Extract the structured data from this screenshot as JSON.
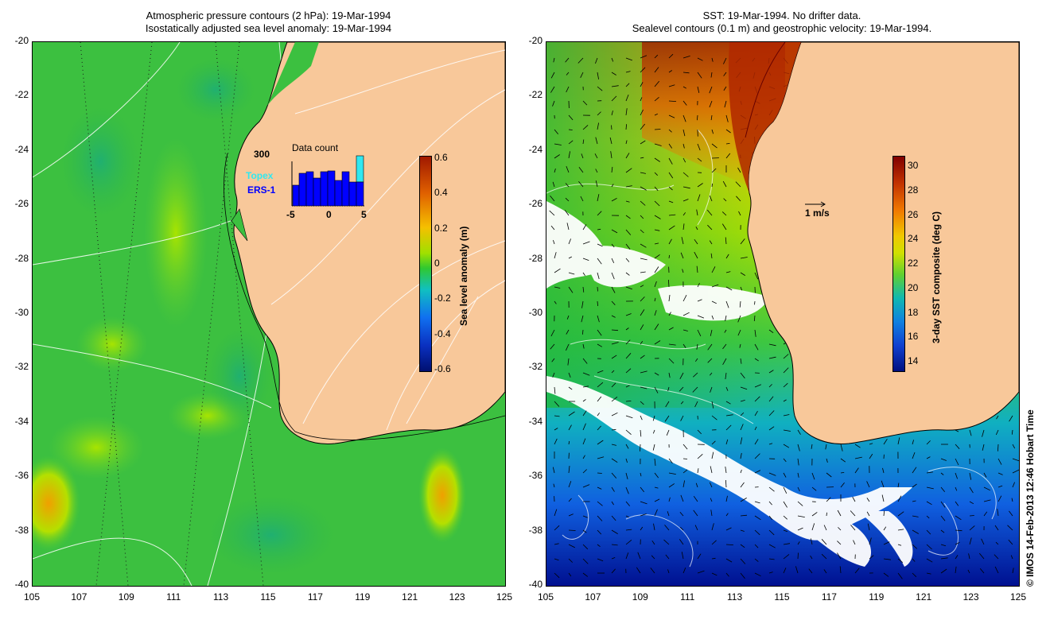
{
  "left_map": {
    "title_line1": "Atmospheric pressure contours (2 hPa): 19-Mar-1994",
    "title_line2": "Isostatically adjusted sea level anomaly: 19-Mar-1994",
    "lat_ticks": [
      "-20",
      "-22",
      "-24",
      "-26",
      "-28",
      "-30",
      "-32",
      "-34",
      "-36",
      "-38",
      "-40"
    ],
    "lon_ticks": [
      "105",
      "107",
      "109",
      "111",
      "113",
      "115",
      "117",
      "119",
      "121",
      "123",
      "125"
    ],
    "colorbar": {
      "title": "Sea level anomaly (m)",
      "labels": [
        "0.6",
        "0.4",
        "0.2",
        "0",
        "-0.2",
        "-0.4",
        "-0.6"
      ],
      "colors": [
        "#a01800",
        "#e86a00",
        "#f5c400",
        "#6ad400",
        "#18c0e8",
        "#0a40d8",
        "#001070"
      ]
    },
    "data_count": {
      "title": "Data count",
      "ymax_label": "300",
      "x_labels": [
        "-5",
        "0",
        "5"
      ],
      "legend_topex": "Topex",
      "legend_ers": "ERS-1",
      "topex_color": "#30e8f0",
      "ers_color": "#0000ff"
    }
  },
  "right_map": {
    "title_line1": "SST: 19-Mar-1994. No drifter data.",
    "title_line2": "Sealevel contours (0.1 m) and geostrophic velocity: 19-Mar-1994.",
    "lat_ticks": [
      "-20",
      "-22",
      "-24",
      "-26",
      "-28",
      "-30",
      "-32",
      "-34",
      "-36",
      "-38",
      "-40"
    ],
    "lon_ticks": [
      "105",
      "107",
      "109",
      "111",
      "113",
      "115",
      "117",
      "119",
      "121",
      "123",
      "125"
    ],
    "velocity_scale": "1 m/s",
    "colorbar": {
      "title": "3-day SST composite (deg C)",
      "labels": [
        "30",
        "28",
        "26",
        "24",
        "22",
        "20",
        "18",
        "16",
        "14"
      ],
      "colors": [
        "#800000",
        "#d04000",
        "#f08c00",
        "#f0d800",
        "#b0e000",
        "#20c020",
        "#10b0d0",
        "#1060e0",
        "#001090"
      ]
    }
  },
  "colors": {
    "land": "#f8c89a",
    "ocean_green": "#3cc83c"
  },
  "credit": "© IMOS 14-Feb-2013 12:46 Hobart Time"
}
